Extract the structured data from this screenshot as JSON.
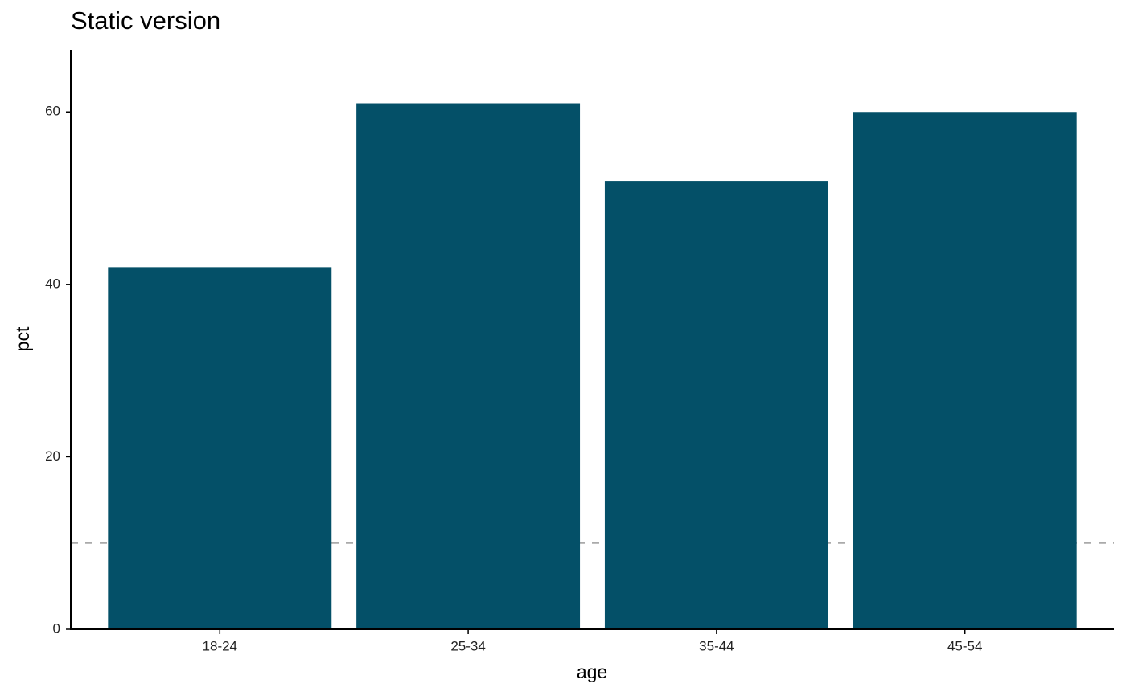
{
  "chart_data": {
    "type": "bar",
    "title": "Static version",
    "x_label": "age",
    "y_label": "pct",
    "categories": [
      "18-24",
      "25-34",
      "35-44",
      "45-54"
    ],
    "values": [
      42,
      61,
      52,
      60
    ],
    "color": "#045068",
    "ylim": [
      0,
      67.2
    ],
    "yticks": [
      0,
      20,
      40,
      60
    ],
    "grid": false,
    "reference_line": {
      "value": 10,
      "color": "#aaaaaa"
    }
  }
}
